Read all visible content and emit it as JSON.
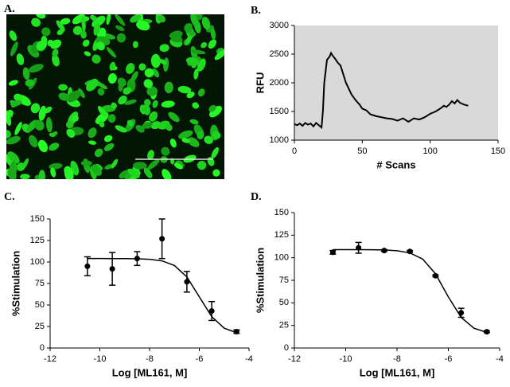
{
  "image_panel": {
    "panel": "A."
  },
  "chart_data": [
    {
      "type": "line",
      "panel": "B.",
      "ylabel": "RFU",
      "xlabel": "# Scans",
      "background": "#d9d9d9",
      "color": "#000000",
      "xlim": [
        0,
        150
      ],
      "xticks": [
        0,
        50,
        100,
        150
      ],
      "ylim": [
        1000,
        3000
      ],
      "yticks": [
        1000,
        1500,
        2000,
        2500,
        3000
      ],
      "x": [
        0,
        2,
        4,
        6,
        8,
        10,
        12,
        14,
        16,
        18,
        20,
        21,
        22,
        24,
        26,
        27,
        28,
        30,
        32,
        34,
        36,
        38,
        40,
        42,
        45,
        48,
        50,
        53,
        56,
        60,
        64,
        68,
        72,
        76,
        80,
        84,
        88,
        92,
        96,
        100,
        104,
        108,
        110,
        112,
        114,
        116,
        118,
        120,
        122,
        125,
        128
      ],
      "values": [
        1280,
        1260,
        1290,
        1250,
        1300,
        1270,
        1290,
        1240,
        1300,
        1260,
        1220,
        1500,
        2000,
        2400,
        2460,
        2520,
        2480,
        2420,
        2350,
        2300,
        2150,
        2000,
        1900,
        1800,
        1700,
        1620,
        1550,
        1520,
        1450,
        1420,
        1400,
        1380,
        1370,
        1340,
        1380,
        1320,
        1380,
        1360,
        1400,
        1460,
        1500,
        1560,
        1600,
        1580,
        1620,
        1680,
        1640,
        1700,
        1650,
        1620,
        1600
      ]
    },
    {
      "type": "scatter",
      "panel": "C.",
      "ylabel": "%Stimulation",
      "xlabel": "Log [ML161, M]",
      "color": "#000000",
      "xlim": [
        -12,
        -4
      ],
      "xticks": [
        -12,
        -10,
        -8,
        -6,
        -4
      ],
      "ylim": [
        0,
        150
      ],
      "yticks": [
        0,
        25,
        50,
        75,
        100,
        125,
        150
      ],
      "points": {
        "x": [
          -10.5,
          -9.5,
          -8.5,
          -7.5,
          -6.5,
          -5.5,
          -4.5
        ],
        "values": [
          95,
          92,
          104,
          127,
          77,
          43,
          19
        ],
        "errors": [
          11,
          19,
          8,
          23,
          12,
          11,
          2
        ]
      },
      "fit": {
        "x": [
          -10.5,
          -10,
          -9.5,
          -9,
          -8.5,
          -8,
          -7.5,
          -7,
          -6.5,
          -6,
          -5.5,
          -5,
          -4.5
        ],
        "values": [
          104,
          104,
          103.97,
          103.9,
          103.7,
          103.1,
          101.3,
          95.9,
          82.6,
          59.5,
          36.4,
          23.1,
          17.7
        ]
      }
    },
    {
      "type": "scatter",
      "panel": "D.",
      "ylabel": "%Stimulation",
      "xlabel": "Log [ML161, M]",
      "color": "#000000",
      "xlim": [
        -12,
        -4
      ],
      "xticks": [
        -12,
        -10,
        -8,
        -6,
        -4
      ],
      "ylim": [
        0,
        150
      ],
      "yticks": [
        0,
        25,
        50,
        75,
        100,
        125,
        150
      ],
      "points": {
        "x": [
          -10.5,
          -9.5,
          -8.5,
          -7.5,
          -6.5,
          -5.5,
          -4.5
        ],
        "values": [
          106,
          111,
          108,
          107,
          80,
          39,
          18
        ],
        "errors": [
          2,
          6,
          1,
          1,
          1,
          5,
          1
        ]
      },
      "fit": {
        "x": [
          -10.5,
          -10,
          -9.5,
          -9,
          -8.5,
          -8,
          -7.5,
          -7,
          -6.5,
          -6,
          -5.5,
          -5,
          -4.5
        ],
        "values": [
          109,
          108.99,
          108.96,
          108.88,
          108.6,
          107.8,
          105.4,
          98.5,
          82.2,
          56.6,
          33.9,
          21.9,
          17.3
        ]
      }
    }
  ]
}
